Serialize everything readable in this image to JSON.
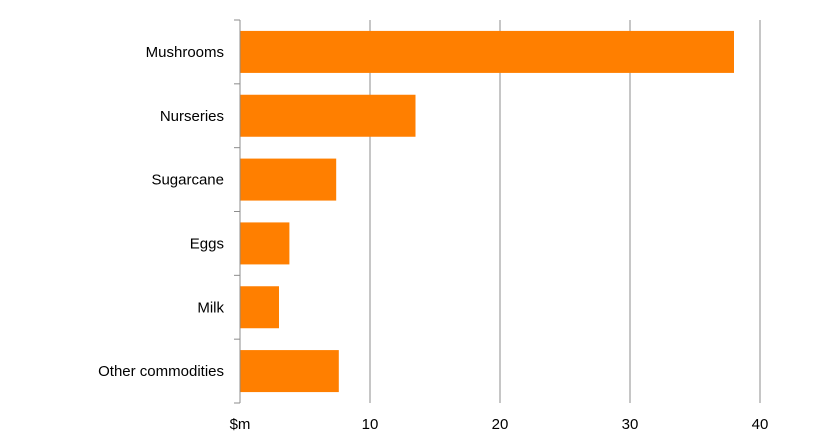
{
  "chart_data": {
    "type": "bar",
    "orientation": "horizontal",
    "categories": [
      "Mushrooms",
      "Nurseries",
      "Sugarcane",
      "Eggs",
      "Milk",
      "Other commodities"
    ],
    "values": [
      38.0,
      13.5,
      7.4,
      3.8,
      3.0,
      7.6
    ],
    "bar_color": "#FF7F00",
    "xlim": [
      0,
      40
    ],
    "x_ticks": [
      0,
      10,
      20,
      30,
      40
    ],
    "x_tick_labels": [
      "$m",
      "10",
      "20",
      "30",
      "40"
    ],
    "grid": "vertical",
    "title": "",
    "xlabel": "",
    "ylabel": ""
  }
}
